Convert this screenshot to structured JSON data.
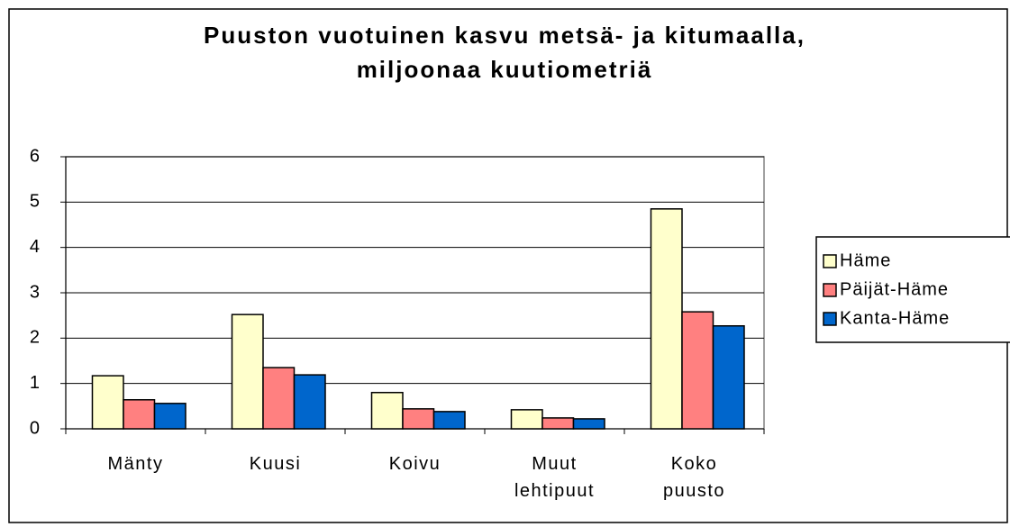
{
  "chart_data": {
    "type": "bar",
    "title": "Puuston vuotuinen kasvu metsä- ja kitumaalla,\nmiljoonaa kuutiometriä",
    "categories": [
      "Mänty",
      "Kuusi",
      "Koivu",
      "Muut\nlehtipuut",
      "Koko\npuusto"
    ],
    "series": [
      {
        "name": "Häme",
        "color": "#ffffcc",
        "values": [
          1.17,
          2.52,
          0.8,
          0.42,
          4.85
        ]
      },
      {
        "name": "Päijät-Häme",
        "color": "#ff8080",
        "values": [
          0.64,
          1.35,
          0.44,
          0.24,
          2.58
        ]
      },
      {
        "name": "Kanta-Häme",
        "color": "#0066cc",
        "values": [
          0.56,
          1.19,
          0.38,
          0.22,
          2.27
        ]
      }
    ],
    "ylim": [
      0,
      6
    ],
    "yticks": [
      0,
      1,
      2,
      3,
      4,
      5,
      6
    ],
    "grid": true,
    "legend": "right"
  }
}
